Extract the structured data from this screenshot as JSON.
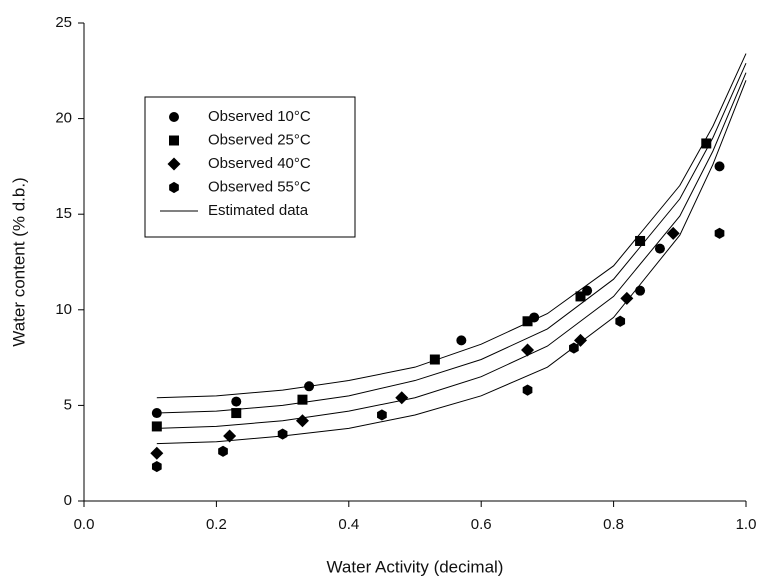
{
  "chart_data": {
    "type": "scatter",
    "x_label": "Water Activity (decimal)",
    "y_label": "Water content (% d.b.)",
    "xlim": [
      0,
      1
    ],
    "ylim": [
      0,
      25
    ],
    "xticks": [
      {
        "value": 0,
        "label": "0.0"
      },
      {
        "value": 0.2,
        "label": "0.2"
      },
      {
        "value": 0.4,
        "label": "0.4"
      },
      {
        "value": 0.6,
        "label": "0.6"
      },
      {
        "value": 0.8,
        "label": "0.8"
      },
      {
        "value": 1,
        "label": "1.0"
      }
    ],
    "yticks": [
      0,
      5,
      10,
      15,
      20,
      25
    ],
    "grid": false,
    "legend": "upper-left",
    "series": [
      {
        "name": "Observed 10°C",
        "color": "#000000",
        "marker": "circle",
        "x": [
          0.11,
          0.23,
          0.34,
          0.57,
          0.68,
          0.76,
          0.84,
          0.87,
          0.96
        ],
        "values": [
          4.6,
          5.2,
          6.0,
          8.4,
          9.6,
          11.0,
          11.0,
          13.2,
          17.5
        ]
      },
      {
        "name": "Observed 25°C",
        "color": "#000000",
        "marker": "square",
        "x": [
          0.11,
          0.23,
          0.33,
          0.53,
          0.67,
          0.75,
          0.84,
          0.94
        ],
        "values": [
          3.9,
          4.6,
          5.3,
          7.4,
          9.4,
          10.7,
          13.6,
          18.7
        ]
      },
      {
        "name": "Observed 40°C",
        "color": "#000000",
        "marker": "diamond",
        "x": [
          0.11,
          0.22,
          0.33,
          0.48,
          0.67,
          0.75,
          0.82,
          0.89
        ],
        "values": [
          2.5,
          3.4,
          4.2,
          5.4,
          7.9,
          8.4,
          10.6,
          14.0
        ]
      },
      {
        "name": "Observed 55°C",
        "color": "#000000",
        "marker": "hexagon",
        "x": [
          0.11,
          0.21,
          0.3,
          0.45,
          0.67,
          0.74,
          0.81,
          0.96
        ],
        "values": [
          1.8,
          2.6,
          3.5,
          4.5,
          5.8,
          8.0,
          9.4,
          14.0
        ]
      }
    ],
    "fits": {
      "name": "Estimated data",
      "color": "#000000",
      "x": [
        0.11,
        0.2,
        0.3,
        0.4,
        0.5,
        0.6,
        0.7,
        0.8,
        0.9,
        0.95,
        1.0
      ],
      "curves": [
        [
          5.4,
          5.5,
          5.8,
          6.3,
          7.0,
          8.2,
          9.8,
          12.3,
          16.5,
          19.6,
          23.4
        ],
        [
          4.6,
          4.7,
          5.0,
          5.5,
          6.3,
          7.4,
          9.0,
          11.6,
          15.8,
          19.0,
          22.9
        ],
        [
          3.8,
          3.9,
          4.2,
          4.7,
          5.4,
          6.5,
          8.1,
          10.7,
          14.9,
          18.3,
          22.4
        ],
        [
          3.0,
          3.1,
          3.4,
          3.8,
          4.5,
          5.5,
          7.0,
          9.6,
          13.9,
          17.6,
          22.0
        ]
      ]
    }
  }
}
